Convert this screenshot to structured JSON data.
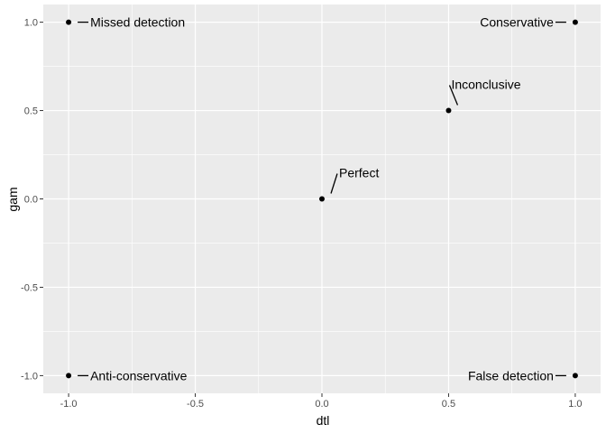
{
  "chart_data": {
    "type": "scatter",
    "xlabel": "dtl",
    "ylabel": "gam",
    "xlim": [
      -1.1,
      1.1
    ],
    "ylim": [
      -1.1,
      1.1
    ],
    "x_ticks": [
      -1.0,
      -0.5,
      0.0,
      0.5,
      1.0
    ],
    "y_ticks": [
      -1.0,
      -0.5,
      0.0,
      0.5,
      1.0
    ],
    "x_tick_labels": [
      "-1.0",
      "-0.5",
      "0.0",
      "0.5",
      "1.0"
    ],
    "y_tick_labels": [
      "-1.0",
      "-0.5",
      "0.0",
      "0.5",
      "1.0"
    ],
    "grid": true,
    "panel_background": "#ebebeb",
    "grid_color": "#ffffff",
    "point_color": "#000000",
    "points": [
      {
        "x": -1,
        "y": 1,
        "label": "Missed detection"
      },
      {
        "x": 1,
        "y": 1,
        "label": "Conservative"
      },
      {
        "x": 0.5,
        "y": 0.5,
        "label": "Inconclusive"
      },
      {
        "x": 0,
        "y": 0,
        "label": "Perfect"
      },
      {
        "x": -1,
        "y": -1,
        "label": "Anti-conservative"
      },
      {
        "x": 1,
        "y": -1,
        "label": "False detection"
      }
    ]
  }
}
